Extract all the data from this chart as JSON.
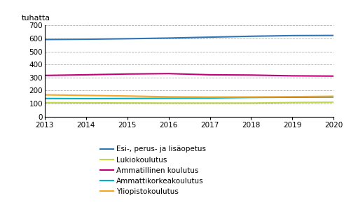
{
  "years": [
    2013,
    2014,
    2015,
    2016,
    2017,
    2018,
    2019,
    2020
  ],
  "series": {
    "Esi-, perus- ja lisäopetus": {
      "values": [
        592,
        594,
        598,
        603,
        610,
        617,
        622,
        623
      ],
      "color": "#2e75b6",
      "linewidth": 1.5
    },
    "Lukiokoulutus": {
      "values": [
        107,
        106,
        105,
        104,
        104,
        104,
        108,
        110
      ],
      "color": "#c0d84c",
      "linewidth": 1.5
    },
    "Ammatillinen koulutus": {
      "values": [
        316,
        321,
        327,
        330,
        321,
        319,
        313,
        311
      ],
      "color": "#c00078",
      "linewidth": 1.5
    },
    "Ammattikorkeakoulutus": {
      "values": [
        139,
        138,
        139,
        141,
        143,
        147,
        149,
        150
      ],
      "color": "#00b0c8",
      "linewidth": 1.5
    },
    "Yliopistokoulutus": {
      "values": [
        167,
        163,
        158,
        152,
        150,
        151,
        153,
        156
      ],
      "color": "#f5a623",
      "linewidth": 1.5
    }
  },
  "ylim": [
    0,
    700
  ],
  "yticks": [
    0,
    100,
    200,
    300,
    400,
    500,
    600,
    700
  ],
  "ylabel": "tuhatta",
  "xlim": [
    2013,
    2020
  ],
  "xticks": [
    2013,
    2014,
    2015,
    2016,
    2017,
    2018,
    2019,
    2020
  ],
  "grid_color": "#b0b0b0",
  "grid_linestyle": "--",
  "background_color": "#ffffff",
  "legend_order": [
    "Esi-, perus- ja lisäopetus",
    "Lukiokoulutus",
    "Ammatillinen koulutus",
    "Ammattikorkeakoulutus",
    "Yliopistokoulutus"
  ]
}
